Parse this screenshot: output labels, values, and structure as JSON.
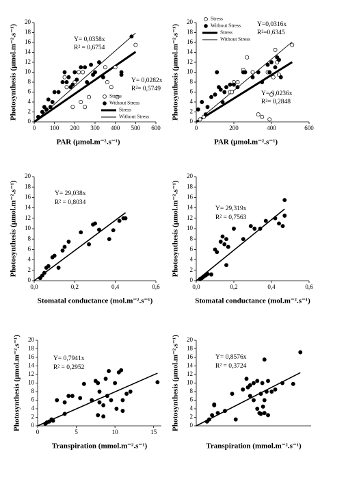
{
  "chart_data": [
    {
      "type": "scatter",
      "x_label": "PAR (µmol.m⁻².s⁻¹)",
      "y_label": "Photosynthesis (µmol.m⁻².s⁻¹)",
      "xlim": [
        0,
        600
      ],
      "ylim": [
        0,
        20
      ],
      "xticks": [
        0,
        100,
        200,
        300,
        400,
        500,
        600
      ],
      "yticks": [
        0,
        2,
        4,
        6,
        8,
        10,
        12,
        14,
        16,
        18,
        20
      ],
      "series": [
        {
          "name": "Stress",
          "marker": "open",
          "x": [
            230,
            250,
            270,
            190,
            150,
            200,
            220,
            240,
            350,
            360,
            380,
            400,
            500,
            410,
            160
          ],
          "values": [
            4,
            3,
            5,
            3,
            9,
            8,
            10,
            10,
            11,
            8,
            7,
            11,
            15.5,
            5,
            7
          ]
        },
        {
          "name": "Without Stress",
          "marker": "filled",
          "x": [
            20,
            40,
            50,
            60,
            70,
            80,
            90,
            100,
            120,
            150,
            160,
            170,
            180,
            200,
            210,
            230,
            250,
            260,
            280,
            290,
            300,
            320,
            340,
            430,
            430,
            480,
            140,
            190
          ],
          "values": [
            1,
            2,
            3,
            2.5,
            4.5,
            3,
            4,
            6,
            6,
            10,
            8,
            9,
            7,
            10,
            8.5,
            11,
            11,
            8,
            11.5,
            9.5,
            10,
            12,
            9,
            10,
            9.5,
            17.2,
            8,
            7.5
          ]
        }
      ],
      "fits": [
        {
          "name": "Stress",
          "style": "thick",
          "slope": 0.0282,
          "label": "Y= 0,0282x",
          "r2_label": "R²= 0,5749"
        },
        {
          "name": "Without Stress",
          "style": "thin",
          "slope": 0.0358,
          "label": "Y= 0,0358x",
          "r2_label": "R² = 0,6754"
        }
      ]
    },
    {
      "type": "scatter",
      "x_label": "PAR (µmol.m⁻².s⁻¹)",
      "y_label": "Photosynthesis (µmol.m⁻².s⁻¹)",
      "xlim": [
        0,
        600
      ],
      "ylim": [
        0,
        20
      ],
      "xticks": [
        0,
        200,
        400,
        600
      ],
      "yticks": [
        0,
        2,
        4,
        6,
        8,
        10,
        12,
        14,
        16,
        18,
        20
      ],
      "series": [
        {
          "name": "Stress",
          "marker": "open",
          "x": [
            20,
            40,
            180,
            190,
            200,
            220,
            250,
            270,
            300,
            330,
            350,
            380,
            390,
            400,
            420,
            430,
            440,
            510,
            410
          ],
          "values": [
            0.5,
            1,
            6,
            6,
            8,
            8,
            10.5,
            13,
            10,
            1.5,
            1,
            10,
            0.5,
            5.5,
            14.5,
            12,
            9.5,
            15.5,
            9
          ]
        },
        {
          "name": "Without Stress",
          "marker": "filled",
          "x": [
            10,
            30,
            50,
            60,
            80,
            100,
            110,
            120,
            130,
            140,
            150,
            160,
            180,
            200,
            220,
            250,
            260,
            300,
            330,
            350,
            380,
            390,
            400,
            420,
            430,
            440,
            450
          ],
          "values": [
            2.5,
            4,
            1.5,
            3,
            5,
            5.5,
            10,
            7,
            6.5,
            4,
            6,
            7,
            7.5,
            7.5,
            7,
            10,
            10,
            9,
            10,
            8,
            11.5,
            10,
            12,
            11,
            13,
            12.5,
            9
          ]
        }
      ],
      "fits": [
        {
          "name": "Stress",
          "style": "thick",
          "slope": 0.0236,
          "label": "Y= 0,0236x",
          "r2_label": "R²= 0,2848"
        },
        {
          "name": "Without Stress",
          "style": "thin",
          "slope": 0.0316,
          "label": "Y=0,0316x",
          "r2_label": "R²=0,6345"
        }
      ]
    },
    {
      "type": "scatter",
      "x_label": "Stomatal conductance (mol.m⁻².s⁻¹)",
      "y_label": "Photosynthesis (µmol.m⁻².s⁻¹)",
      "xlim": [
        0,
        0.6
      ],
      "ylim": [
        0,
        20
      ],
      "xticks": [
        {
          "value": 0,
          "label": "0,0"
        },
        {
          "value": 0.2,
          "label": "0,2"
        },
        {
          "value": 0.4,
          "label": "0,4"
        },
        {
          "value": 0.6,
          "label": "0,6"
        }
      ],
      "yticks": [
        0,
        2,
        4,
        6,
        8,
        10,
        12,
        14,
        16,
        18,
        20
      ],
      "series": [
        {
          "marker": "filled",
          "x": [
            0.03,
            0.04,
            0.05,
            0.06,
            0.07,
            0.09,
            0.1,
            0.12,
            0.14,
            0.15,
            0.17,
            0.23,
            0.27,
            0.29,
            0.3,
            0.32,
            0.37,
            0.39,
            0.42,
            0.44,
            0.45
          ],
          "values": [
            0.5,
            1,
            1.5,
            2.5,
            2.8,
            4.5,
            4.8,
            2.5,
            5.8,
            6.5,
            7.5,
            9.3,
            7,
            10.8,
            11,
            9.8,
            8,
            9.7,
            11.5,
            12,
            12
          ]
        }
      ],
      "fits": [
        {
          "style": "medium",
          "slope": 29.038,
          "label": "Y= 29,038x",
          "r2_label": "R² = 0,8034"
        }
      ]
    },
    {
      "type": "scatter",
      "x_label": "Stomatal conductance (mol.m⁻².s⁻¹)",
      "y_label": "Photosynthesis (µmol.m⁻².s⁻¹)",
      "xlim": [
        0,
        0.6
      ],
      "ylim": [
        0,
        20
      ],
      "xticks": [
        {
          "value": 0,
          "label": "0,0"
        },
        {
          "value": 0.2,
          "label": "0,2"
        },
        {
          "value": 0.4,
          "label": "0,4"
        },
        {
          "value": 0.6,
          "label": "0,6"
        }
      ],
      "yticks": [
        0,
        2,
        4,
        6,
        8,
        10,
        12,
        14,
        16,
        18,
        20
      ],
      "series": [
        {
          "marker": "filled",
          "x": [
            0.02,
            0.03,
            0.04,
            0.05,
            0.06,
            0.08,
            0.1,
            0.11,
            0.13,
            0.14,
            0.15,
            0.16,
            0.16,
            0.17,
            0.2,
            0.25,
            0.29,
            0.31,
            0.34,
            0.37,
            0.42,
            0.44,
            0.46,
            0.47,
            0.47
          ],
          "values": [
            0.3,
            0.5,
            0.8,
            1,
            1.3,
            1.2,
            6,
            5.5,
            7.5,
            8.5,
            7,
            8,
            3,
            6.5,
            10,
            8,
            10.5,
            10,
            10,
            11.5,
            12,
            11,
            10.5,
            15.5,
            12.5
          ]
        }
      ],
      "fits": [
        {
          "style": "medium",
          "slope": 29.319,
          "label": "Y= 29,319x",
          "r2_label": "R² = 0,7563"
        }
      ]
    },
    {
      "type": "scatter",
      "x_label": "Transpiration (mmol.m⁻².s⁻¹)",
      "y_label": "Photosynthesis (µmol.m⁻².s⁻¹)",
      "xlim": [
        0,
        16
      ],
      "ylim": [
        0,
        20
      ],
      "xticks": [
        0,
        5,
        10,
        15
      ],
      "yticks": [
        0,
        2,
        4,
        6,
        8,
        10,
        12,
        14,
        16,
        18,
        20
      ],
      "series": [
        {
          "marker": "filled",
          "x": [
            1,
            1.2,
            1.5,
            1.8,
            2,
            2.5,
            3.5,
            3.5,
            4,
            4.5,
            5.5,
            6,
            7,
            7.5,
            7.8,
            7.8,
            8,
            8,
            8.5,
            8.5,
            8.8,
            9,
            9.2,
            9.5,
            10,
            10.2,
            10.5,
            10.8,
            11,
            11,
            11.5,
            12,
            15.5
          ],
          "values": [
            0.5,
            0.8,
            1,
            1.5,
            1.2,
            6,
            2.8,
            5.5,
            7,
            7,
            6.5,
            9.8,
            6,
            10.5,
            10,
            2.5,
            8,
            5.5,
            4.8,
            2.2,
            11,
            7,
            12.8,
            6,
            10,
            4,
            12.5,
            13,
            6,
            3.5,
            7.5,
            8,
            10.2
          ]
        }
      ],
      "fits": [
        {
          "style": "medium",
          "slope": 0.7941,
          "label": "Y= 0,7941x",
          "r2_label": "R² = 0,2952"
        }
      ]
    },
    {
      "type": "scatter",
      "x_label": "Transpiration (mmol.m⁻².s⁻¹)",
      "y_label": "Photosynthesis (µmol.m⁻².s⁻¹)",
      "xlim": [
        0,
        16
      ],
      "ylim": [
        0,
        20
      ],
      "yticks": [
        0,
        2,
        4,
        6,
        8,
        10,
        12,
        14,
        16,
        18,
        20
      ],
      "series": [
        {
          "marker": "filled",
          "x": [
            1.5,
            1.8,
            2.2,
            2.5,
            2.5,
            3,
            4,
            5,
            5.5,
            6.5,
            7,
            7.2,
            7.5,
            7.5,
            8,
            8,
            8.5,
            8.5,
            8.8,
            9,
            9,
            9.2,
            9.3,
            9.5,
            9.5,
            9.5,
            9.8,
            10,
            10,
            10.5,
            11,
            12,
            13.5,
            14.5
          ],
          "values": [
            1,
            1.5,
            2.5,
            5,
            4.8,
            3,
            3.5,
            7.5,
            1.5,
            8.5,
            11,
            9,
            9.5,
            7,
            10,
            6,
            10.5,
            4,
            3,
            2.8,
            7.5,
            10,
            4.5,
            15.5,
            6,
            3,
            8,
            10.5,
            2.5,
            8,
            8.5,
            10,
            9.8,
            17.2
          ]
        }
      ],
      "fits": [
        {
          "style": "medium",
          "slope": 0.8576,
          "label": "Y= 0,8576x",
          "r2_label": "R² = 0,3724"
        }
      ]
    }
  ]
}
